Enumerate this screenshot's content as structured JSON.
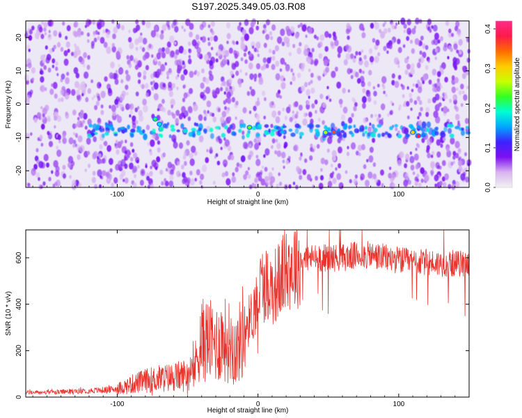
{
  "title": "S197.2025.349.05.03.R08",
  "colors": {
    "trace": "#e8322c",
    "axis": "#000000",
    "colorbar_stops": [
      "#f2f2f2",
      "#d8b3f0",
      "#7d10f0",
      "#3d22ff",
      "#00a7ff",
      "#00ffd2",
      "#33ff22",
      "#c9ff00",
      "#ffcb00",
      "#ff6a00",
      "#ff1a4a",
      "#ff2a8a"
    ]
  },
  "chart_data": [
    {
      "type": "heatmap",
      "xlabel": "Height of straight line (km)",
      "ylabel": "Frequency (Hz)",
      "xlim": [
        -165,
        150
      ],
      "ylim": [
        -25,
        25
      ],
      "xticks": [
        -100,
        0,
        100
      ],
      "yticks": [
        20,
        10,
        0,
        -10,
        -20
      ],
      "colorbar": {
        "label": "Normalized spectral amplitude",
        "range": [
          0.0,
          0.42
        ],
        "ticks": [
          0.0,
          0.1,
          0.2,
          0.3,
          0.4
        ]
      },
      "signal_band": {
        "frequency_hz": -8,
        "from_km": -120,
        "to_km": 150
      },
      "peaks": [
        {
          "x_km": -73,
          "y_hz": -4.5,
          "amplitude": 0.22
        },
        {
          "x_km": -70,
          "y_hz": -6.0,
          "amplitude": 0.18
        },
        {
          "x_km": -6,
          "y_hz": -7.0,
          "amplitude": 0.24
        },
        {
          "x_km": 48,
          "y_hz": -8.5,
          "amplitude": 0.26
        },
        {
          "x_km": 54,
          "y_hz": -8.5,
          "amplitude": 0.36
        },
        {
          "x_km": 110,
          "y_hz": -8.5,
          "amplitude": 0.3
        },
        {
          "x_km": 114,
          "y_hz": -9.5,
          "amplitude": 0.38
        }
      ]
    },
    {
      "type": "line",
      "xlabel": "Height of straight line (km)",
      "ylabel": "SNR (10 * v/v)",
      "xlim": [
        -165,
        150
      ],
      "ylim": [
        0,
        720
      ],
      "xticks": [
        -100,
        0,
        100
      ],
      "yticks": [
        0,
        200,
        400,
        600
      ],
      "series": [
        {
          "x": [
            -165,
            -150,
            -130,
            -110,
            -100,
            -90,
            -80,
            -70,
            -60,
            -52,
            -45,
            -42,
            -38,
            -30,
            -25,
            -20,
            -15,
            -10,
            -5,
            0,
            2,
            5,
            10,
            15,
            18,
            20,
            25,
            30,
            35,
            40,
            50,
            60,
            70,
            80,
            90,
            100,
            110,
            120,
            130,
            140,
            150
          ],
          "values": [
            20,
            20,
            25,
            30,
            35,
            55,
            70,
            80,
            85,
            95,
            120,
            230,
            250,
            230,
            250,
            240,
            200,
            300,
            340,
            430,
            480,
            490,
            470,
            500,
            540,
            560,
            570,
            590,
            600,
            600,
            600,
            600,
            610,
            610,
            600,
            590,
            580,
            580,
            575,
            575,
            575
          ]
        }
      ]
    }
  ]
}
